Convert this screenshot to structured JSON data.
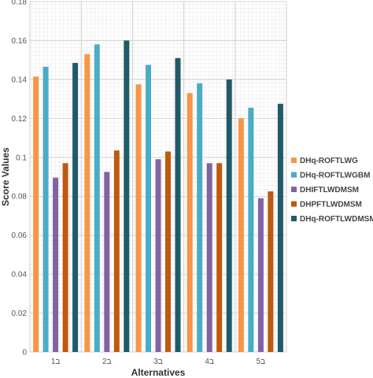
{
  "chart_data": {
    "type": "bar",
    "title": "",
    "xlabel": "Alternatives",
    "ylabel": "Score Values",
    "categories": [
      "ב1",
      "ב2",
      "ב3",
      "ב4",
      "ב5"
    ],
    "ylim": [
      0,
      0.18
    ],
    "yticks": [
      0,
      0.02,
      0.04,
      0.06,
      0.08,
      0.1,
      0.12,
      0.14,
      0.16,
      0.18
    ],
    "ytick_labels": [
      "0",
      "0.02",
      "0.04",
      "0.06",
      "0.08",
      "0.1",
      "0.12",
      "0.14",
      "0.16",
      "0.18"
    ],
    "grid": true,
    "legend_position": "right",
    "series": [
      {
        "name": "DHq-ROFTLWG",
        "color": "#F79646",
        "values": [
          0.1415,
          0.153,
          0.1375,
          0.133,
          0.12
        ]
      },
      {
        "name": "DHq-ROFTLWGBM",
        "color": "#4BACC6",
        "values": [
          0.1465,
          0.158,
          0.1475,
          0.138,
          0.1255
        ]
      },
      {
        "name": "DHIFTLWDMSM",
        "color": "#8064A2",
        "values": [
          0.0895,
          0.0925,
          0.099,
          0.097,
          0.079
        ]
      },
      {
        "name": "DHPFTLWDMSM",
        "color": "#C0590F",
        "values": [
          0.097,
          0.1035,
          0.103,
          0.097,
          0.0825
        ]
      },
      {
        "name": "DHq-ROFTLWDMSM",
        "color": "#215A69",
        "values": [
          0.1485,
          0.16,
          0.151,
          0.14,
          0.1275
        ]
      }
    ]
  }
}
